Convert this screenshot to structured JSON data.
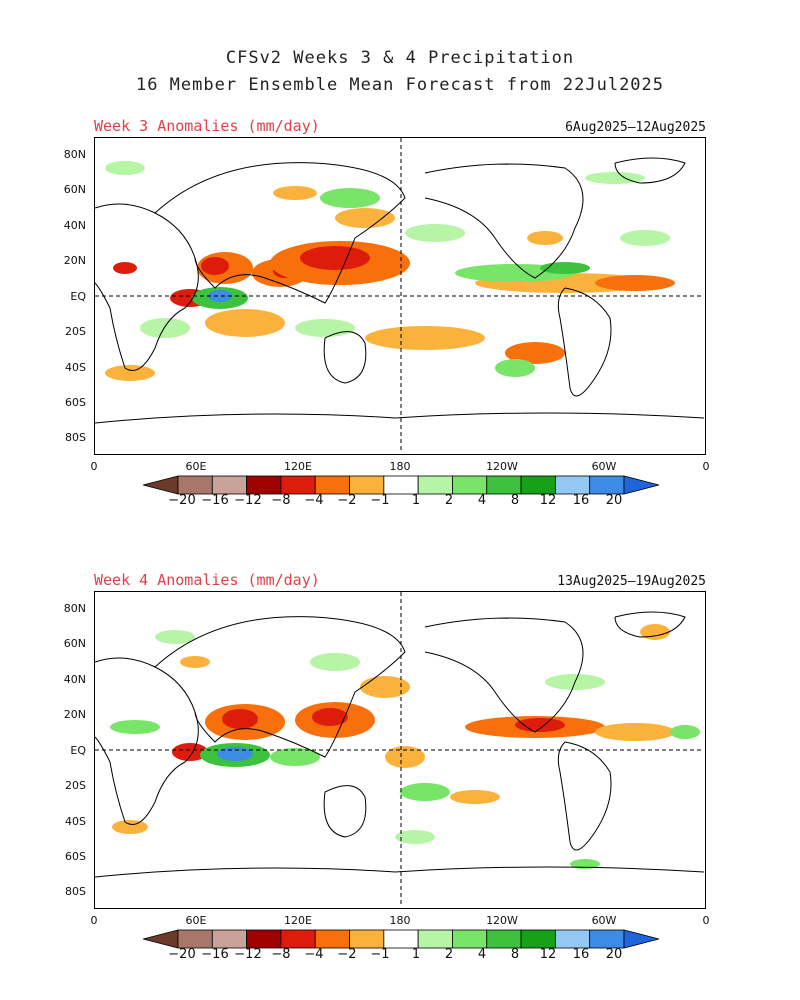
{
  "header": {
    "title_line1": "CFSv2 Weeks 3 & 4 Precipitation",
    "title_line2": "16 Member Ensemble Mean Forecast from 22Jul2025"
  },
  "panels": [
    {
      "label": "Week 3 Anomalies (mm/day)",
      "date_range": "6Aug2025—12Aug2025"
    },
    {
      "label": "Week 4 Anomalies (mm/day)",
      "date_range": "13Aug2025—19Aug2025"
    }
  ],
  "axes": {
    "lat_labels": [
      "80N",
      "60N",
      "40N",
      "20N",
      "EQ",
      "20S",
      "40S",
      "60S",
      "80S"
    ],
    "lon_labels": [
      "0",
      "60E",
      "120E",
      "180",
      "120W",
      "60W",
      "0"
    ]
  },
  "colorbar": {
    "labels": [
      "−20",
      "−16",
      "−12",
      "−8",
      "−4",
      "−2",
      "−1",
      "1",
      "2",
      "4",
      "8",
      "12",
      "16",
      "20"
    ],
    "colors": [
      "#6b3a2a",
      "#a9776a",
      "#c9a29a",
      "#a00000",
      "#dd1c0c",
      "#f7700b",
      "#fbb23c",
      "#ffffff",
      "#b6f5a6",
      "#78e468",
      "#3cc23c",
      "#18a018",
      "#94c8f4",
      "#3c8ce6",
      "#1e64dc"
    ]
  }
}
